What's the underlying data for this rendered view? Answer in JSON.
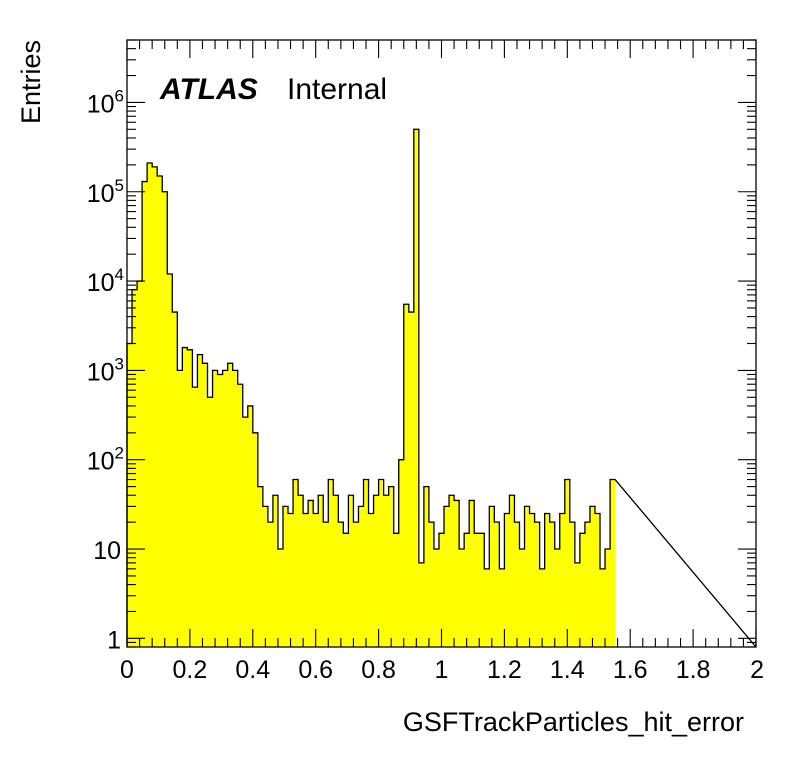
{
  "chart_data": {
    "type": "bar",
    "xlabel": "GSFTrackParticles_hit_error",
    "ylabel": "Entries",
    "xlim": [
      0,
      2
    ],
    "ylim": [
      0.8,
      5000000
    ],
    "log_y": true,
    "fill_color": "#ffff00",
    "line_color": "#000000",
    "grid": false,
    "legend": "none",
    "x_tick_labels": [
      "0",
      "0.2",
      "0.4",
      "0.6",
      "0.8",
      "1",
      "1.2",
      "1.4",
      "1.6",
      "1.8",
      "2"
    ],
    "y_tick_labels": [
      {
        "base": "1",
        "exp": ""
      },
      {
        "base": "10",
        "exp": ""
      },
      {
        "base": "10",
        "exp": "2"
      },
      {
        "base": "10",
        "exp": "3"
      },
      {
        "base": "10",
        "exp": "4"
      },
      {
        "base": "10",
        "exp": "5"
      },
      {
        "base": "10",
        "exp": "6"
      }
    ],
    "bin_edges_start": 0,
    "bin_width": 0.016,
    "values": [
      2000,
      8000,
      10000,
      130000,
      210000,
      190000,
      150000,
      100000,
      12000,
      4500,
      1000,
      1800,
      1700,
      650,
      1500,
      1200,
      500,
      1000,
      900,
      1000,
      1200,
      1000,
      700,
      300,
      400,
      200,
      50,
      30,
      20,
      40,
      10,
      30,
      25,
      60,
      40,
      25,
      35,
      25,
      40,
      20,
      60,
      40,
      20,
      15,
      40,
      20,
      30,
      60,
      25,
      40,
      60,
      40,
      50,
      15,
      100,
      5500,
      4500,
      500000,
      7,
      50,
      20,
      10,
      15,
      30,
      40,
      35,
      10,
      15,
      35,
      15,
      15,
      6,
      30,
      20,
      6,
      25,
      40,
      20,
      10,
      30,
      25,
      20,
      6,
      25,
      20,
      10,
      25,
      60,
      20,
      7,
      15,
      20,
      30,
      25,
      6,
      10,
      60
    ]
  },
  "annotation": {
    "atlas": "ATLAS",
    "status": "Internal"
  }
}
